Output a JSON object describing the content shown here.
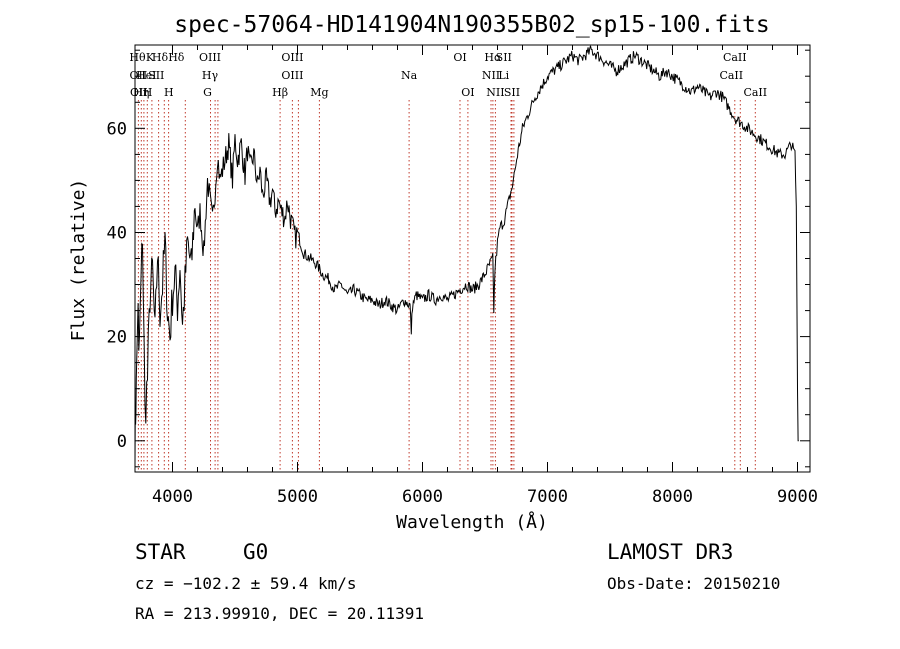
{
  "chart_data": {
    "type": "line",
    "title": "spec-57064-HD141904N190355B02_sp15-100.fits",
    "xlabel": "Wavelength (Å)",
    "ylabel": "Flux (relative)",
    "xlim": [
      3700,
      9100
    ],
    "ylim": [
      -6,
      76
    ],
    "xticks": [
      4000,
      5000,
      6000,
      7000,
      8000,
      9000
    ],
    "yticks": [
      0,
      20,
      40,
      60
    ],
    "series": [
      {
        "name": "flux",
        "x": [
          3700,
          3705,
          3710,
          3725,
          3730,
          3760,
          3780,
          3800,
          3820,
          3840,
          3860,
          3880,
          3900,
          3920,
          3940,
          3960,
          3980,
          4000,
          4020,
          4040,
          4060,
          4080,
          4100,
          4120,
          4150,
          4180,
          4200,
          4220,
          4250,
          4280,
          4300,
          4320,
          4340,
          4360,
          4380,
          4400,
          4420,
          4450,
          4480,
          4500,
          4520,
          4550,
          4580,
          4600,
          4620,
          4650,
          4680,
          4700,
          4720,
          4750,
          4780,
          4800,
          4820,
          4850,
          4870,
          4900,
          4920,
          4950,
          4980,
          5000,
          5050,
          5100,
          5150,
          5200,
          5250,
          5300,
          5350,
          5400,
          5450,
          5500,
          5550,
          5600,
          5650,
          5700,
          5750,
          5800,
          5850,
          5900,
          5910,
          5920,
          5950,
          6000,
          6050,
          6100,
          6150,
          6200,
          6250,
          6300,
          6350,
          6400,
          6450,
          6500,
          6540,
          6562,
          6570,
          6580,
          6600,
          6620,
          6650,
          6680,
          6700,
          6720,
          6740,
          6760,
          6800,
          6850,
          6900,
          6950,
          7000,
          7050,
          7100,
          7150,
          7200,
          7250,
          7300,
          7350,
          7400,
          7450,
          7500,
          7550,
          7600,
          7650,
          7700,
          7750,
          7800,
          7850,
          7900,
          7950,
          8000,
          8050,
          8100,
          8150,
          8200,
          8250,
          8300,
          8350,
          8400,
          8450,
          8500,
          8550,
          8600,
          8650,
          8700,
          8750,
          8800,
          8850,
          8900,
          8950,
          8980,
          8990,
          9000,
          9005,
          9010
        ],
        "y": [
          0,
          5,
          10,
          28,
          15,
          40,
          5,
          12,
          28,
          33,
          20,
          36,
          25,
          30,
          38,
          25,
          20,
          28,
          32,
          26,
          34,
          22,
          30,
          38,
          33,
          46,
          40,
          44,
          36,
          50,
          46,
          42,
          48,
          55,
          50,
          52,
          54,
          57,
          50,
          58,
          54,
          57,
          51,
          56,
          52,
          55,
          49,
          52,
          47,
          50,
          46,
          48,
          44,
          46,
          44,
          43,
          46,
          42,
          39,
          40,
          36,
          35,
          34,
          32,
          31,
          29,
          30,
          28,
          29,
          28,
          27,
          27,
          26,
          27,
          26,
          25,
          27,
          26,
          21,
          26,
          28,
          27,
          28,
          27,
          28,
          27,
          28,
          29,
          30,
          29,
          30,
          32,
          34,
          35,
          25,
          33,
          38,
          41,
          42,
          45,
          47,
          49,
          52,
          55,
          60,
          63,
          66,
          68,
          70,
          71,
          72,
          73,
          74,
          73,
          74,
          75,
          74,
          73,
          72,
          71,
          72,
          73,
          74,
          73,
          72,
          71,
          70,
          71,
          70,
          69,
          68,
          67,
          68,
          67,
          66,
          67,
          66,
          64,
          62,
          61,
          60,
          59,
          58,
          57,
          56,
          55,
          55,
          57,
          55,
          45,
          10,
          0,
          0
        ]
      }
    ],
    "line_labels": [
      {
        "w": 3720,
        "text": "Hθ",
        "row": 0
      },
      {
        "w": 3727,
        "text": "OII",
        "row": 1
      },
      {
        "w": 3730,
        "text": "OII",
        "row": 2
      },
      {
        "w": 3750,
        "text": "Hη",
        "row": 2
      },
      {
        "w": 3800,
        "text": "H",
        "row": 2
      },
      {
        "w": 3820,
        "text": "K",
        "row": 0
      },
      {
        "w": 3790,
        "text": "HeI",
        "row": 1
      },
      {
        "w": 3870,
        "text": "SII",
        "row": 1
      },
      {
        "w": 3900,
        "text": "Hδ",
        "row": 0
      },
      {
        "w": 3970,
        "text": "H",
        "row": 2
      },
      {
        "w": 4030,
        "text": "Hδ",
        "row": 0
      },
      {
        "w": 4300,
        "text": "OIII",
        "row": 0
      },
      {
        "w": 4300,
        "text": "Hγ",
        "row": 1
      },
      {
        "w": 4280,
        "text": "G",
        "row": 2
      },
      {
        "w": 4861,
        "text": "Hβ",
        "row": 2
      },
      {
        "w": 4959,
        "text": "OIII",
        "row": 0
      },
      {
        "w": 4959,
        "text": "OIII",
        "row": 1
      },
      {
        "w": 5175,
        "text": "Mg",
        "row": 2
      },
      {
        "w": 5893,
        "text": "Na",
        "row": 1
      },
      {
        "w": 6300,
        "text": "OI",
        "row": 0
      },
      {
        "w": 6363,
        "text": "OI",
        "row": 2
      },
      {
        "w": 6563,
        "text": "Hα",
        "row": 0
      },
      {
        "w": 6548,
        "text": "NII",
        "row": 1
      },
      {
        "w": 6583,
        "text": "NII",
        "row": 2
      },
      {
        "w": 6650,
        "text": "SII",
        "row": 0
      },
      {
        "w": 6650,
        "text": "Li",
        "row": 1
      },
      {
        "w": 6716,
        "text": "SII",
        "row": 2
      },
      {
        "w": 8498,
        "text": "CaII",
        "row": 0
      },
      {
        "w": 8470,
        "text": "CaII",
        "row": 1
      },
      {
        "w": 8662,
        "text": "CaII",
        "row": 2
      }
    ],
    "line_positions": [
      3727,
      3750,
      3771,
      3798,
      3835,
      3889,
      3934,
      3969,
      4102,
      4304,
      4341,
      4363,
      4861,
      4959,
      5007,
      5175,
      5893,
      6300,
      6363,
      6548,
      6563,
      6583,
      6708,
      6716,
      6731,
      8498,
      8542,
      8662
    ]
  },
  "info": {
    "class": "STAR",
    "subclass": "G0",
    "survey": "LAMOST DR3",
    "cz": "cz = −102.2 ± 59.4 km/s",
    "obs_date": "Obs-Date: 20150210",
    "coords": "RA = 213.99910, DEC =  20.11391"
  }
}
